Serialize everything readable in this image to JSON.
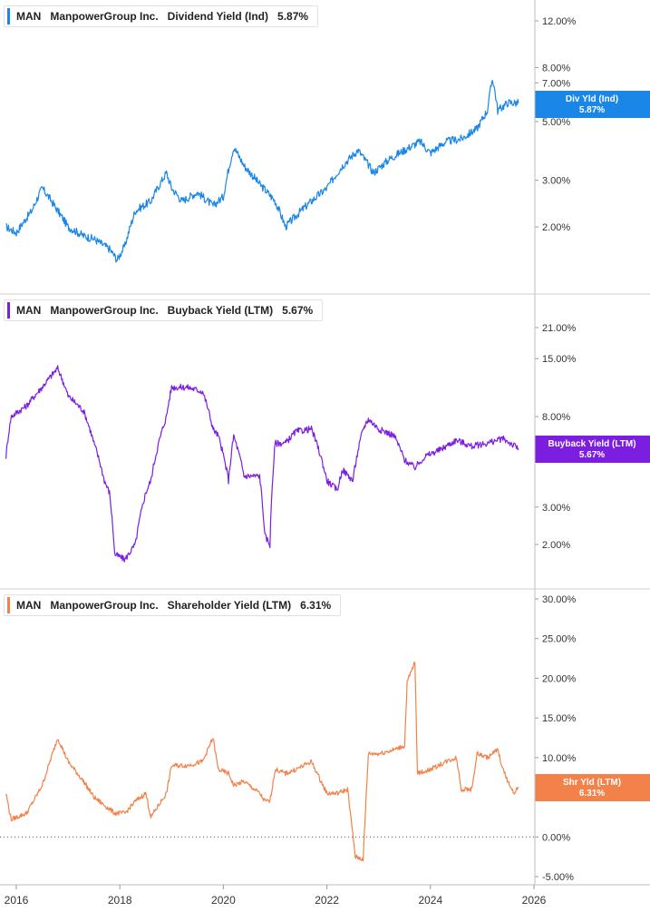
{
  "colors": {
    "dividend": "#1a86e8",
    "buyback": "#7c1ee0",
    "shareholder": "#f2824a",
    "grid": "#cfcfcf"
  },
  "x_axis": {
    "ticks": [
      "2016",
      "2018",
      "2020",
      "2022",
      "2024",
      "2026"
    ]
  },
  "chart_data": [
    {
      "type": "line",
      "ticker": "MAN",
      "company": "ManpowerGroup Inc.",
      "title": "Dividend Yield (Ind)",
      "current_label": "5.87%",
      "badge_line1": "Div Yld (Ind)",
      "badge_line2": "5.87%",
      "scale": "log",
      "y_ticks": [
        12,
        8,
        7,
        5,
        3,
        2
      ],
      "y_tick_labels": [
        "12.00%",
        "8.00%",
        "7.00%",
        "5.00%",
        "3.00%",
        "2.00%"
      ],
      "x": [
        2015.8,
        2016.0,
        2016.3,
        2016.5,
        2016.8,
        2017.0,
        2017.3,
        2017.5,
        2017.8,
        2017.95,
        2018.1,
        2018.3,
        2018.6,
        2018.9,
        2019.0,
        2019.2,
        2019.5,
        2019.8,
        2020.0,
        2020.2,
        2020.4,
        2020.7,
        2021.0,
        2021.2,
        2021.4,
        2021.7,
        2022.0,
        2022.3,
        2022.6,
        2022.9,
        2023.2,
        2023.5,
        2023.8,
        2024.0,
        2024.3,
        2024.6,
        2024.9,
        2025.1,
        2025.2,
        2025.3,
        2025.5,
        2025.7
      ],
      "y": [
        2.0,
        1.9,
        2.3,
        2.8,
        2.3,
        2.0,
        1.85,
        1.8,
        1.65,
        1.5,
        1.7,
        2.3,
        2.5,
        3.2,
        2.8,
        2.5,
        2.7,
        2.4,
        2.6,
        4.0,
        3.4,
        2.9,
        2.5,
        2.0,
        2.2,
        2.5,
        2.8,
        3.4,
        3.9,
        3.2,
        3.6,
        3.9,
        4.2,
        3.8,
        4.2,
        4.3,
        4.7,
        5.5,
        7.3,
        5.5,
        5.9,
        5.87
      ]
    },
    {
      "type": "line",
      "ticker": "MAN",
      "company": "ManpowerGroup Inc.",
      "title": "Buyback Yield (LTM)",
      "current_label": "5.67%",
      "badge_line1": "Buyback Yield (LTM)",
      "badge_line2": "5.67%",
      "scale": "log",
      "y_ticks": [
        21,
        15,
        8,
        3,
        2
      ],
      "y_tick_labels": [
        "21.00%",
        "15.00%",
        "8.00%",
        "3.00%",
        "2.00%"
      ],
      "x": [
        2015.8,
        2015.9,
        2016.2,
        2016.5,
        2016.8,
        2017.0,
        2017.3,
        2017.5,
        2017.7,
        2017.8,
        2017.9,
        2018.1,
        2018.3,
        2018.5,
        2018.6,
        2018.9,
        2019.0,
        2019.3,
        2019.6,
        2019.8,
        2019.9,
        2020.1,
        2020.2,
        2020.4,
        2020.7,
        2020.8,
        2020.9,
        2021.0,
        2021.2,
        2021.4,
        2021.7,
        2022.0,
        2022.2,
        2022.3,
        2022.5,
        2022.7,
        2022.8,
        2023.0,
        2023.3,
        2023.5,
        2023.7,
        2023.9,
        2024.2,
        2024.5,
        2024.8,
        2025.1,
        2025.4,
        2025.7
      ],
      "y": [
        5.2,
        8.0,
        9.0,
        11.0,
        13.5,
        10.0,
        8.5,
        6.0,
        4.0,
        3.5,
        1.8,
        1.7,
        2.0,
        3.5,
        4.0,
        8.0,
        11.0,
        11.0,
        10.5,
        7.0,
        6.5,
        4.0,
        6.5,
        4.2,
        4.2,
        2.2,
        2.0,
        6.0,
        6.0,
        6.8,
        7.0,
        4.0,
        3.6,
        4.5,
        4.0,
        7.0,
        7.8,
        7.0,
        6.5,
        5.0,
        4.6,
        5.2,
        5.6,
        6.2,
        5.8,
        6.0,
        6.3,
        5.67
      ]
    },
    {
      "type": "line",
      "ticker": "MAN",
      "company": "ManpowerGroup Inc.",
      "title": "Shareholder Yield (LTM)",
      "current_label": "6.31%",
      "badge_line1": "Shr Yld (LTM)",
      "badge_line2": "6.31%",
      "scale": "linear",
      "zero_line": 0,
      "y_ticks": [
        30,
        25,
        20,
        15,
        10,
        5,
        0,
        -5
      ],
      "y_tick_labels": [
        "30.00%",
        "25.00%",
        "20.00%",
        "15.00%",
        "10.00%",
        "5.00%",
        "0.00%",
        "-5.00%"
      ],
      "x": [
        2015.8,
        2015.9,
        2016.2,
        2016.5,
        2016.8,
        2017.0,
        2017.3,
        2017.5,
        2017.7,
        2017.8,
        2017.9,
        2018.1,
        2018.3,
        2018.5,
        2018.6,
        2018.9,
        2019.0,
        2019.3,
        2019.6,
        2019.8,
        2019.9,
        2020.1,
        2020.2,
        2020.4,
        2020.7,
        2020.8,
        2020.9,
        2021.0,
        2021.2,
        2021.4,
        2021.7,
        2022.0,
        2022.2,
        2022.4,
        2022.55,
        2022.7,
        2022.8,
        2023.0,
        2023.3,
        2023.5,
        2023.55,
        2023.7,
        2023.75,
        2024.0,
        2024.3,
        2024.5,
        2024.6,
        2024.8,
        2024.9,
        2025.1,
        2025.3,
        2025.4,
        2025.6,
        2025.7
      ],
      "y": [
        5.5,
        2.2,
        3.0,
        6.5,
        12.5,
        9.5,
        7.0,
        5.0,
        4.0,
        3.5,
        3.0,
        3.0,
        4.5,
        5.5,
        2.5,
        5.5,
        9.0,
        9.0,
        9.5,
        12.5,
        8.5,
        8.0,
        6.5,
        7.0,
        5.5,
        4.5,
        4.5,
        8.5,
        8.0,
        8.5,
        9.5,
        5.5,
        5.5,
        6.0,
        -2.5,
        -2.8,
        10.5,
        10.5,
        11.0,
        11.5,
        19.5,
        22.0,
        8.0,
        8.5,
        9.5,
        10.0,
        6.0,
        6.0,
        10.5,
        10.0,
        11.0,
        8.5,
        5.5,
        6.31
      ]
    }
  ]
}
